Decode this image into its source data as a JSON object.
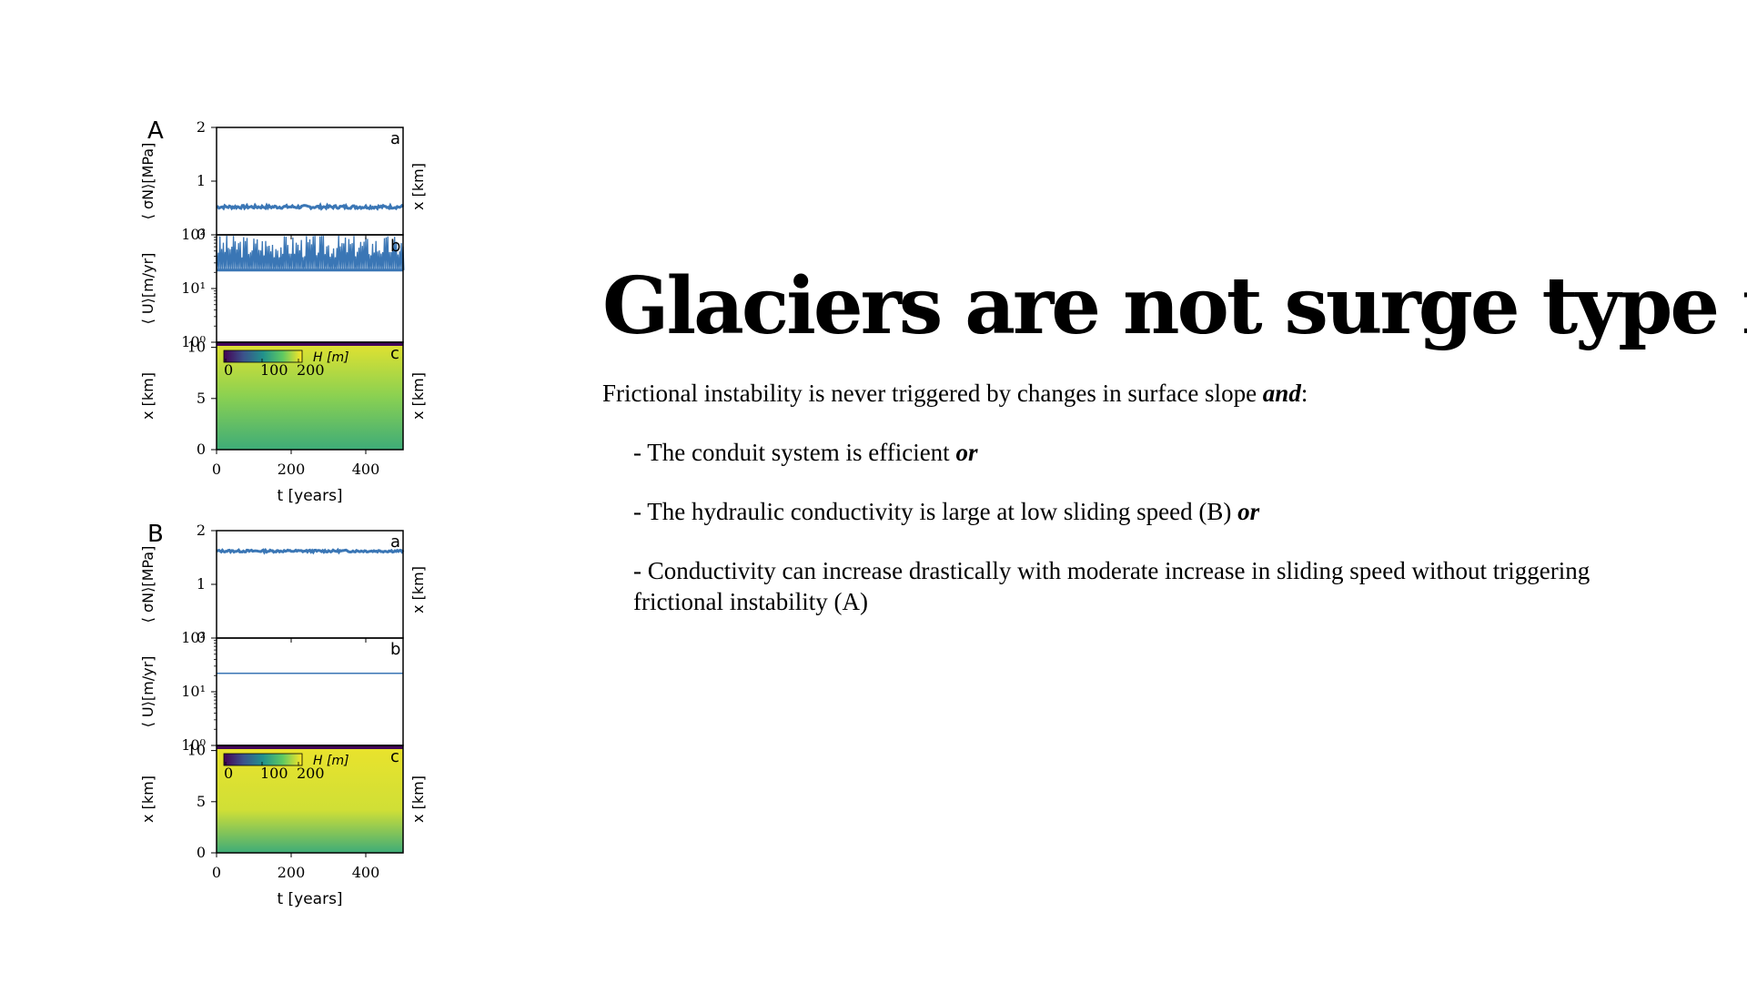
{
  "slide": {
    "title": "Glaciers are not surge type if",
    "intro": {
      "text": "Frictional instability is never triggered by changes in surface slope ",
      "emph": "and",
      "tail": ":"
    },
    "items": [
      {
        "text": "- The conduit system is efficient ",
        "emph": "or"
      },
      {
        "text": "- The hydraulic conductivity is large at low sliding speed (B) ",
        "emph": "or"
      },
      {
        "text": "- Conductivity can increase drastically with moderate increase in sliding speed without triggering frictional instability (A)",
        "emph": ""
      }
    ]
  },
  "chart_data": [
    {
      "type": "line",
      "figure": "A",
      "panel": "a",
      "ylabel": "⟨ σN⟩[MPa]",
      "right_label": "x [km]",
      "xlim": [
        0,
        500
      ],
      "ylim": [
        0,
        2
      ],
      "yticks": [
        "0",
        "1",
        "2"
      ],
      "color": "#3a76b5",
      "series": [
        {
          "x": [
            0,
            500
          ],
          "y": [
            0.52,
            0.52
          ],
          "noise": 0.03
        }
      ]
    },
    {
      "type": "line",
      "figure": "A",
      "panel": "b",
      "ylabel": "⟨ U⟩[m/yr]",
      "right_label": "",
      "xlim": [
        0,
        500
      ],
      "ylim": [
        1,
        100
      ],
      "scale": "log",
      "yticks": [
        "10⁰",
        "10¹",
        "10²"
      ],
      "color": "#3a76b5",
      "series": [
        {
          "x": [
            0,
            500
          ],
          "baseline": 22,
          "spikes_max": 100
        }
      ]
    },
    {
      "type": "heatmap",
      "figure": "A",
      "panel": "c",
      "ylabel": "x [km]",
      "xlabel": "t [years]",
      "right_label": "x [km]",
      "xlim": [
        0,
        500
      ],
      "ylim": [
        0,
        10.5
      ],
      "xticks": [
        "0",
        "200",
        "400"
      ],
      "yticks": [
        "0",
        "5",
        "10"
      ],
      "colorbar": {
        "label": "H [m]",
        "ticks": [
          "0",
          "100",
          "200"
        ],
        "colormap": "viridis"
      }
    },
    {
      "type": "line",
      "figure": "B",
      "panel": "a",
      "ylabel": "⟨ σN⟩[MPa]",
      "right_label": "x [km]",
      "xlim": [
        0,
        500
      ],
      "ylim": [
        0,
        2
      ],
      "yticks": [
        "0",
        "1",
        "2"
      ],
      "color": "#3a76b5",
      "series": [
        {
          "x": [
            0,
            500
          ],
          "y": [
            1.62,
            1.62
          ],
          "noise": 0.02
        }
      ]
    },
    {
      "type": "line",
      "figure": "B",
      "panel": "b",
      "ylabel": "⟨ U⟩[m/yr]",
      "right_label": "",
      "xlim": [
        0,
        500
      ],
      "ylim": [
        1,
        100
      ],
      "scale": "log",
      "yticks": [
        "10⁰",
        "10¹",
        "10²"
      ],
      "color": "#3a76b5",
      "series": [
        {
          "x": [
            0,
            500
          ],
          "y": [
            22,
            22
          ]
        }
      ]
    },
    {
      "type": "heatmap",
      "figure": "B",
      "panel": "c",
      "ylabel": "x [km]",
      "xlabel": "t [years]",
      "right_label": "x [km]",
      "xlim": [
        0,
        500
      ],
      "ylim": [
        0,
        10.5
      ],
      "xticks": [
        "0",
        "200",
        "400"
      ],
      "yticks": [
        "0",
        "5",
        "10"
      ],
      "colorbar": {
        "label": "H [m]",
        "ticks": [
          "0",
          "100",
          "200"
        ],
        "colormap": "viridis"
      }
    }
  ],
  "figure_labels": [
    "A",
    "B"
  ]
}
